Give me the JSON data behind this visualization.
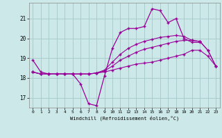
{
  "xlabel": "Windchill (Refroidissement éolien,°C)",
  "background_color": "#cce8e8",
  "grid_color": "#aacccc",
  "line_color": "#990099",
  "x_hours": [
    0,
    1,
    2,
    3,
    4,
    5,
    6,
    7,
    8,
    9,
    10,
    11,
    12,
    13,
    14,
    15,
    16,
    17,
    18,
    19,
    20,
    21,
    22,
    23
  ],
  "series1": [
    18.9,
    18.3,
    18.2,
    18.2,
    18.2,
    18.2,
    17.7,
    16.7,
    16.6,
    18.1,
    19.5,
    20.3,
    20.5,
    20.5,
    20.6,
    21.5,
    21.4,
    20.8,
    21.0,
    20.0,
    19.8,
    19.8,
    null,
    null
  ],
  "series2": [
    18.3,
    18.2,
    18.2,
    18.2,
    18.2,
    18.2,
    18.2,
    18.2,
    18.25,
    18.3,
    18.4,
    18.5,
    18.6,
    18.7,
    18.75,
    18.8,
    18.9,
    19.0,
    19.1,
    19.2,
    19.4,
    19.4,
    19.1,
    18.6
  ],
  "series3": [
    18.3,
    18.2,
    18.2,
    18.2,
    18.2,
    18.2,
    18.2,
    18.2,
    18.25,
    18.35,
    18.6,
    18.9,
    19.1,
    19.3,
    19.45,
    19.55,
    19.65,
    19.75,
    19.85,
    19.9,
    19.9,
    19.85,
    19.4,
    18.6
  ],
  "series4": [
    18.3,
    18.2,
    18.2,
    18.2,
    18.2,
    18.2,
    18.2,
    18.2,
    18.25,
    18.4,
    18.8,
    19.2,
    19.5,
    19.7,
    19.85,
    19.95,
    20.05,
    20.1,
    20.15,
    20.1,
    19.9,
    19.85,
    19.4,
    18.6
  ],
  "ylim": [
    16.5,
    21.8
  ],
  "yticks": [
    17,
    18,
    19,
    20,
    21
  ],
  "xlim": [
    -0.5,
    23.5
  ],
  "xticks": [
    0,
    1,
    2,
    3,
    4,
    5,
    6,
    7,
    8,
    9,
    10,
    11,
    12,
    13,
    14,
    15,
    16,
    17,
    18,
    19,
    20,
    21,
    22,
    23
  ]
}
